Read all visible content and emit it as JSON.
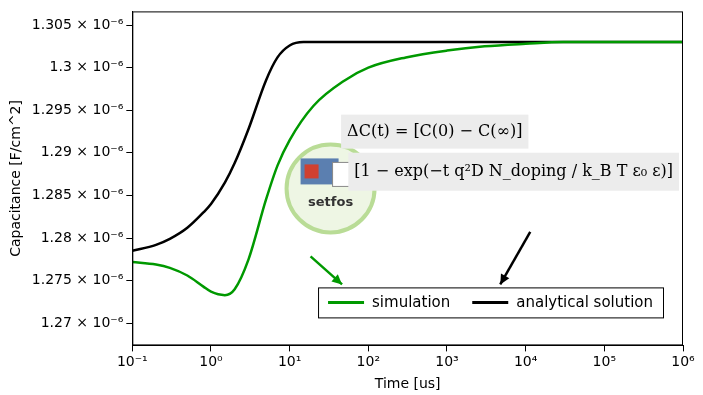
{
  "chart_data": {
    "type": "line",
    "x_label": "Time [us]",
    "y_label": "Capacitance [F/cm^2]",
    "log": "x",
    "grid": false,
    "legend": "lower right",
    "xlim": [
      0.1,
      1000000
    ],
    "ylim": [
      1.2674e-06,
      1.3066e-06
    ],
    "xticks": [
      {
        "value": 0.1,
        "label": "10⁻¹"
      },
      {
        "value": 1,
        "label": "10⁰"
      },
      {
        "value": 10,
        "label": "10¹"
      },
      {
        "value": 100,
        "label": "10²"
      },
      {
        "value": 1000,
        "label": "10³"
      },
      {
        "value": 10000,
        "label": "10⁴"
      },
      {
        "value": 100000,
        "label": "10⁵"
      },
      {
        "value": 1000000,
        "label": "10⁶"
      }
    ],
    "yticks": [
      {
        "value": 1.27e-06,
        "label": "1.27 × 10⁻⁶"
      },
      {
        "value": 1.275e-06,
        "label": "1.275 × 10⁻⁶"
      },
      {
        "value": 1.28e-06,
        "label": "1.28 × 10⁻⁶"
      },
      {
        "value": 1.285e-06,
        "label": "1.285 × 10⁻⁶"
      },
      {
        "value": 1.29e-06,
        "label": "1.29 × 10⁻⁶"
      },
      {
        "value": 1.295e-06,
        "label": "1.295 × 10⁻⁶"
      },
      {
        "value": 1.3e-06,
        "label": "1.3 × 10⁻⁶"
      },
      {
        "value": 1.305e-06,
        "label": "1.305 × 10⁻⁶"
      }
    ],
    "series": [
      {
        "name": "simulation",
        "color": "#009900",
        "x": [
          0.1,
          0.2,
          0.3,
          0.5,
          0.8,
          1,
          1.5,
          2,
          3,
          5,
          7,
          10,
          20,
          50,
          100,
          300,
          1000,
          3000,
          10000,
          30000,
          100000,
          1000000
        ],
        "values": [
          1.2772e-06,
          1.2769e-06,
          1.2765e-06,
          1.2756e-06,
          1.2743e-06,
          1.2737e-06,
          1.2733e-06,
          1.274e-06,
          1.2775e-06,
          1.2845e-06,
          1.2885e-06,
          1.2915e-06,
          1.2955e-06,
          1.2985e-06,
          1.3e-06,
          1.3012e-06,
          1.302e-06,
          1.3025e-06,
          1.3028e-06,
          1.303e-06,
          1.303e-06,
          1.303e-06
        ]
      },
      {
        "name": "analytical solution",
        "color": "#000000",
        "x": [
          0.1,
          0.2,
          0.3,
          0.5,
          0.8,
          1,
          1.5,
          2,
          3,
          5,
          7,
          10,
          15,
          30,
          100,
          1000,
          10000,
          100000,
          1000000
        ],
        "values": [
          1.2785e-06,
          1.2792e-06,
          1.2799e-06,
          1.2812e-06,
          1.283e-06,
          1.284e-06,
          1.2865e-06,
          1.2888e-06,
          1.2928e-06,
          1.2985e-06,
          1.3012e-06,
          1.3026e-06,
          1.303e-06,
          1.303e-06,
          1.303e-06,
          1.303e-06,
          1.303e-06,
          1.303e-06,
          1.303e-06
        ]
      }
    ],
    "annotations": [
      "ΔC(t) = [C(0) − C(∞)]",
      "[1 − exp(−t q²D N_doping / k_B T ε₀ ε)]",
      "setfos"
    ]
  }
}
